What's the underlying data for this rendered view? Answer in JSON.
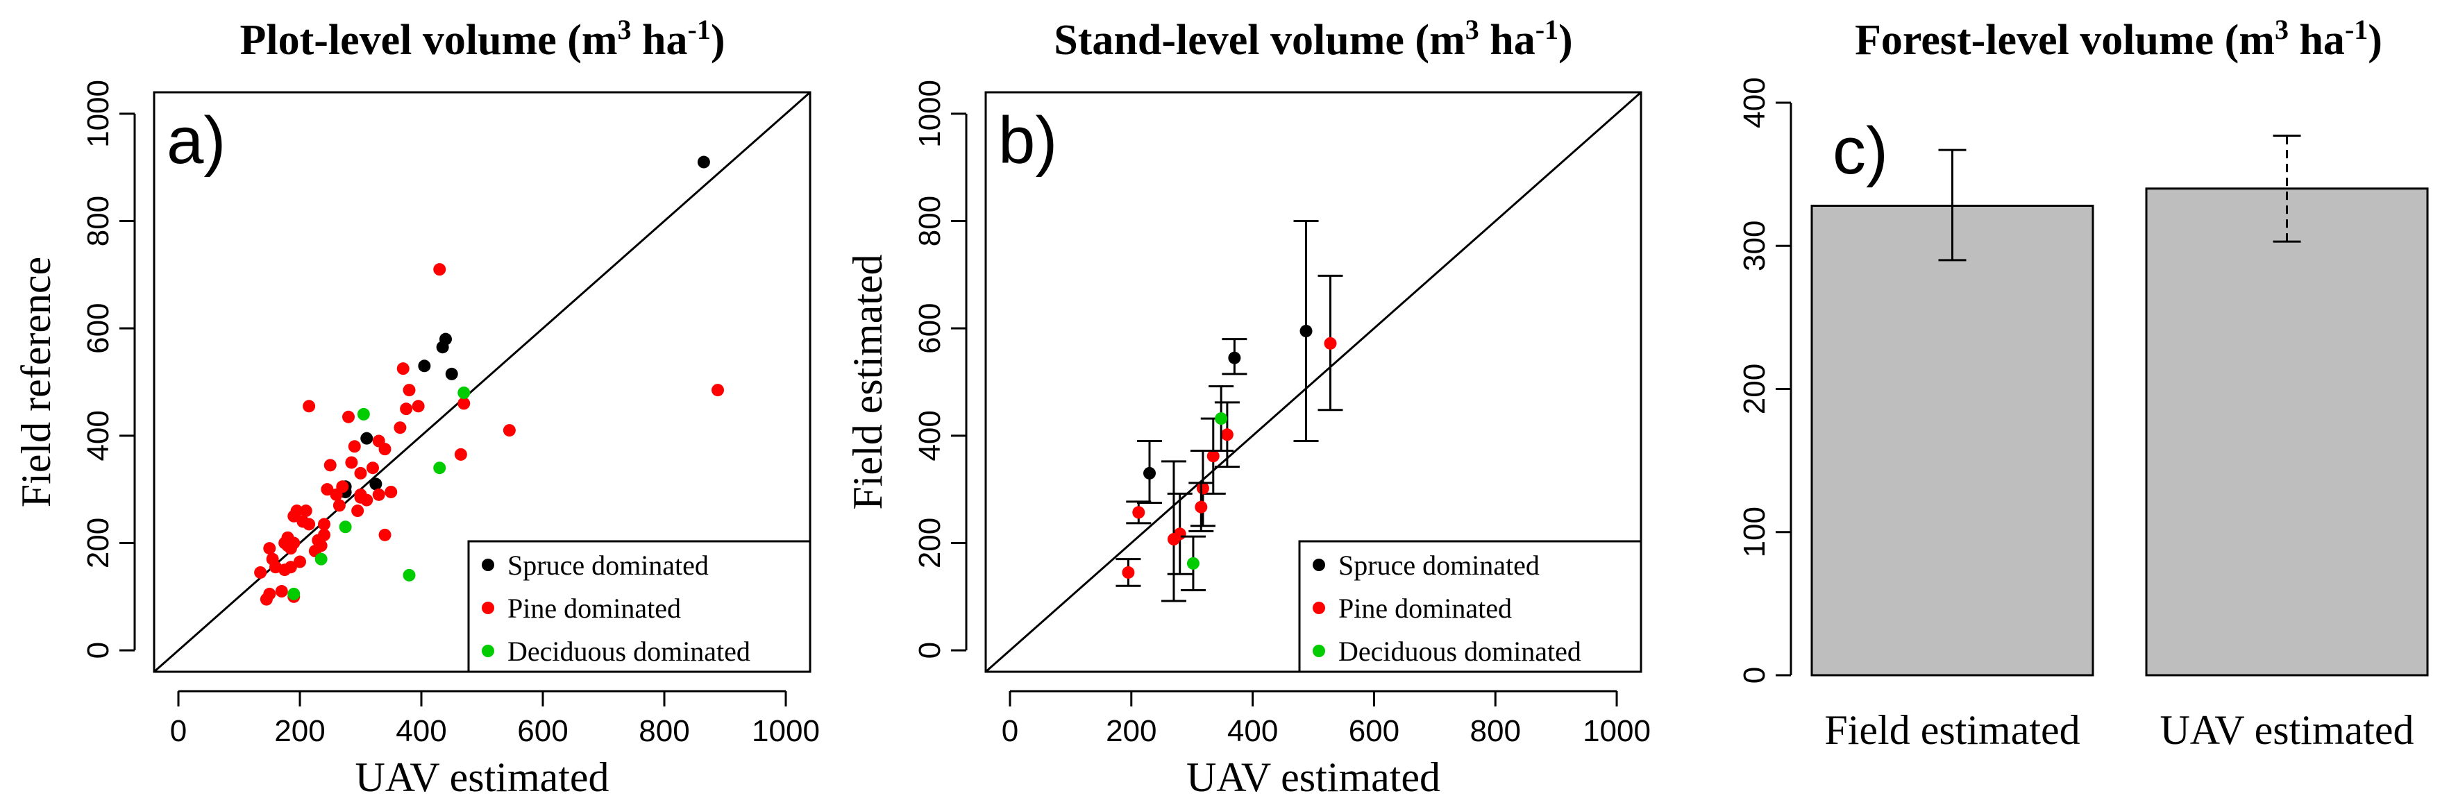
{
  "chart_data": [
    {
      "type": "scatter",
      "panel_label": "a)",
      "title": "Plot-level volume",
      "title_unit": {
        "m": "m",
        "m_sup": "3",
        "ha": " ha",
        "ha_sup": "-1",
        "close": ")",
        "open": "("
      },
      "xlabel": "UAV estimated",
      "ylabel": "Field reference",
      "xlim": [
        -40,
        1040
      ],
      "ylim": [
        -40,
        1040
      ],
      "xticks": [
        0,
        200,
        400,
        600,
        800,
        1000
      ],
      "yticks": [
        0,
        200,
        400,
        600,
        800,
        1000
      ],
      "identity_line": true,
      "legend": [
        "Spruce dominated",
        "Pine dominated",
        "Deciduous dominated"
      ],
      "legend_position": "bottom-right",
      "series": [
        {
          "name": "Spruce dominated",
          "color": "#000000",
          "points": [
            [
              865,
              910
            ],
            [
              440,
              580
            ],
            [
              435,
              565
            ],
            [
              450,
              515
            ],
            [
              405,
              530
            ],
            [
              310,
              395
            ],
            [
              325,
              310
            ],
            [
              275,
              305
            ],
            [
              275,
              295
            ]
          ]
        },
        {
          "name": "Pine dominated",
          "color": "#ff0000",
          "points": [
            [
              430,
              710
            ],
            [
              888,
              485
            ],
            [
              545,
              410
            ],
            [
              470,
              460
            ],
            [
              465,
              365
            ],
            [
              370,
              525
            ],
            [
              375,
              450
            ],
            [
              380,
              485
            ],
            [
              395,
              455
            ],
            [
              365,
              415
            ],
            [
              340,
              375
            ],
            [
              330,
              390
            ],
            [
              320,
              340
            ],
            [
              350,
              295
            ],
            [
              330,
              290
            ],
            [
              300,
              330
            ],
            [
              310,
              280
            ],
            [
              300,
              285
            ],
            [
              295,
              260
            ],
            [
              290,
              380
            ],
            [
              280,
              435
            ],
            [
              285,
              350
            ],
            [
              270,
              305
            ],
            [
              260,
              290
            ],
            [
              265,
              270
            ],
            [
              250,
              345
            ],
            [
              245,
              300
            ],
            [
              240,
              235
            ],
            [
              240,
              215
            ],
            [
              230,
              205
            ],
            [
              225,
              185
            ],
            [
              215,
              235
            ],
            [
              215,
              455
            ],
            [
              210,
              260
            ],
            [
              205,
              240
            ],
            [
              200,
              165
            ],
            [
              195,
              260
            ],
            [
              190,
              250
            ],
            [
              190,
              200
            ],
            [
              185,
              190
            ],
            [
              185,
              155
            ],
            [
              180,
              210
            ],
            [
              180,
              195
            ],
            [
              175,
              200
            ],
            [
              175,
              150
            ],
            [
              170,
              110
            ],
            [
              160,
              155
            ],
            [
              155,
              170
            ],
            [
              150,
              190
            ],
            [
              150,
              105
            ],
            [
              145,
              95
            ],
            [
              135,
              145
            ],
            [
              340,
              215
            ],
            [
              300,
              290
            ],
            [
              235,
              195
            ],
            [
              190,
              100
            ]
          ]
        },
        {
          "name": "Deciduous dominated",
          "color": "#00cc00",
          "points": [
            [
              470,
              480
            ],
            [
              430,
              340
            ],
            [
              380,
              140
            ],
            [
              305,
              440
            ],
            [
              275,
              230
            ],
            [
              235,
              170
            ],
            [
              190,
              105
            ]
          ]
        }
      ]
    },
    {
      "type": "scatter",
      "panel_label": "b)",
      "title": "Stand-level volume",
      "title_unit": {
        "m": "m",
        "m_sup": "3",
        "ha": " ha",
        "ha_sup": "-1",
        "close": ")",
        "open": "("
      },
      "xlabel": "UAV estimated",
      "ylabel": "Field estimated",
      "xlim": [
        -40,
        1040
      ],
      "ylim": [
        -40,
        1040
      ],
      "xticks": [
        0,
        200,
        400,
        600,
        800,
        1000
      ],
      "yticks": [
        0,
        200,
        400,
        600,
        800,
        1000
      ],
      "identity_line": true,
      "legend": [
        "Spruce dominated",
        "Pine dominated",
        "Deciduous dominated"
      ],
      "legend_position": "bottom-right",
      "series": [
        {
          "name": "Spruce dominated",
          "color": "#000000",
          "points": [
            {
              "x": 488,
              "y": 595,
              "lo": 390,
              "hi": 800
            },
            {
              "x": 370,
              "y": 545,
              "lo": 515,
              "hi": 580
            },
            {
              "x": 230,
              "y": 330,
              "lo": 275,
              "hi": 390
            }
          ]
        },
        {
          "name": "Pine dominated",
          "color": "#ff0000",
          "points": [
            {
              "x": 528,
              "y": 572,
              "lo": 448,
              "hi": 698
            },
            {
              "x": 358,
              "y": 402,
              "lo": 342,
              "hi": 462
            },
            {
              "x": 335,
              "y": 362,
              "lo": 292,
              "hi": 432
            },
            {
              "x": 318,
              "y": 302,
              "lo": 232,
              "hi": 372
            },
            {
              "x": 315,
              "y": 267,
              "lo": 222,
              "hi": 312
            },
            {
              "x": 280,
              "y": 217,
              "lo": 142,
              "hi": 292
            },
            {
              "x": 270,
              "y": 207,
              "lo": 92,
              "hi": 352
            },
            {
              "x": 212,
              "y": 257,
              "lo": 237,
              "hi": 277
            },
            {
              "x": 195,
              "y": 145,
              "lo": 120,
              "hi": 170
            }
          ]
        },
        {
          "name": "Deciduous dominated",
          "color": "#00cc00",
          "points": [
            {
              "x": 348,
              "y": 432,
              "lo": 372,
              "hi": 492
            },
            {
              "x": 302,
              "y": 162,
              "lo": 112,
              "hi": 212
            }
          ]
        }
      ]
    },
    {
      "type": "bar",
      "panel_label": "c)",
      "title": "Forest-level volume",
      "title_unit": {
        "m": "m",
        "m_sup": "3",
        "ha": " ha",
        "ha_sup": "-1",
        "close": ")",
        "open": "("
      },
      "categories": [
        "Field estimated",
        "UAV estimated"
      ],
      "values": [
        328,
        340
      ],
      "error_low": [
        290,
        303
      ],
      "error_high": [
        367,
        377
      ],
      "error_style": [
        "solid",
        "dashed"
      ],
      "bar_color": "#bebebe",
      "ylim": [
        0,
        400
      ],
      "yticks": [
        0,
        100,
        200,
        300,
        400
      ]
    }
  ]
}
